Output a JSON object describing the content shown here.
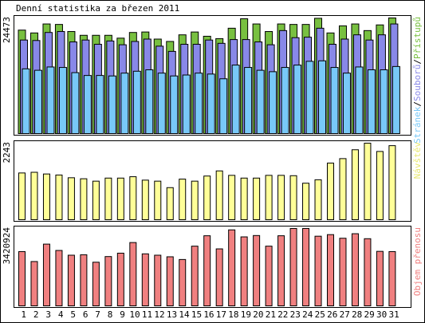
{
  "title": "Denní statistika za březen 2011",
  "colors": {
    "strankaFill": "#78c8f8",
    "souboruFill": "#8888e8",
    "pristupuFill": "#78c040",
    "navstevFill": "#ffff98",
    "objemFill": "#f08080",
    "weekend": "#88bb22",
    "weekday": "#000000",
    "frame": "#000000"
  },
  "chart_data": [
    {
      "type": "bar",
      "ylabel": "24473",
      "ymax": 24473,
      "legend": {
        "part1": "Stránek",
        "sep1": "/",
        "part2": "Souborů",
        "sep2": "/",
        "part3": "Přístupů"
      },
      "categories": [
        "1",
        "2",
        "3",
        "4",
        "5",
        "6",
        "7",
        "8",
        "9",
        "10",
        "11",
        "12",
        "13",
        "14",
        "15",
        "16",
        "17",
        "18",
        "19",
        "20",
        "21",
        "22",
        "23",
        "24",
        "25",
        "26",
        "27",
        "28",
        "29",
        "30",
        "31"
      ],
      "weekend_days": [
        5,
        6,
        12,
        13,
        19,
        20,
        26,
        27
      ],
      "series": [
        {
          "name": "Stránek",
          "values": [
            13700,
            13400,
            14100,
            14000,
            12900,
            12300,
            12300,
            12200,
            12800,
            13200,
            13500,
            12800,
            12200,
            12400,
            12800,
            12600,
            11600,
            14500,
            14000,
            13400,
            13100,
            14000,
            14500,
            15300,
            15400,
            14000,
            12800,
            14100,
            13500,
            13500,
            14200
          ]
        },
        {
          "name": "Souborů",
          "values": [
            19800,
            19700,
            21400,
            21600,
            19400,
            19800,
            18900,
            19600,
            18800,
            19500,
            20000,
            18500,
            17400,
            18900,
            18900,
            19800,
            19100,
            19900,
            19900,
            19400,
            18800,
            21800,
            20300,
            20400,
            22300,
            18900,
            20000,
            20900,
            19800,
            20900,
            23200
          ]
        },
        {
          "name": "Přístupů",
          "values": [
            21900,
            21300,
            23200,
            23100,
            21600,
            20800,
            20800,
            20800,
            20200,
            21400,
            21500,
            20000,
            19500,
            20900,
            21500,
            20600,
            20100,
            22300,
            24300,
            23200,
            21600,
            23200,
            23100,
            23100,
            24400,
            21300,
            22800,
            23200,
            21800,
            23000,
            24473
          ]
        }
      ]
    },
    {
      "type": "bar",
      "ylabel": "2243",
      "ymax": 2243,
      "legend": "Návštěv",
      "categories": [
        "1",
        "2",
        "3",
        "4",
        "5",
        "6",
        "7",
        "8",
        "9",
        "10",
        "11",
        "12",
        "13",
        "14",
        "15",
        "16",
        "17",
        "18",
        "19",
        "20",
        "21",
        "22",
        "23",
        "24",
        "25",
        "26",
        "27",
        "28",
        "29",
        "30",
        "31"
      ],
      "weekend_days": [
        5,
        6,
        12,
        13,
        19,
        20,
        26,
        27
      ],
      "series": [
        {
          "name": "Návštěv",
          "values": [
            1370,
            1390,
            1340,
            1310,
            1230,
            1200,
            1130,
            1220,
            1220,
            1260,
            1160,
            1130,
            940,
            1190,
            1130,
            1280,
            1430,
            1300,
            1220,
            1220,
            1300,
            1300,
            1290,
            1070,
            1170,
            1660,
            1790,
            2050,
            2243,
            2000,
            2170
          ]
        }
      ]
    },
    {
      "type": "bar",
      "ylabel": "3420924",
      "ymax": 3420924,
      "legend": "Objem přenosu",
      "categories": [
        "1",
        "2",
        "3",
        "4",
        "5",
        "6",
        "7",
        "8",
        "9",
        "10",
        "11",
        "12",
        "13",
        "14",
        "15",
        "16",
        "17",
        "18",
        "19",
        "20",
        "21",
        "22",
        "23",
        "24",
        "25",
        "26",
        "27",
        "28",
        "29",
        "30",
        "31"
      ],
      "weekend_days": [
        5,
        6,
        12,
        13,
        19,
        20,
        26,
        27
      ],
      "series": [
        {
          "name": "Objem přenosu",
          "values": [
            2400000,
            1960000,
            2730000,
            2450000,
            2240000,
            2260000,
            1930000,
            2180000,
            2330000,
            2800000,
            2300000,
            2240000,
            2170000,
            2050000,
            2640000,
            3100000,
            2520000,
            3360000,
            3050000,
            3110000,
            2640000,
            3100000,
            3420924,
            3420924,
            3080000,
            3150000,
            2990000,
            3190000,
            2970000,
            2410000,
            2400000
          ]
        }
      ]
    }
  ]
}
